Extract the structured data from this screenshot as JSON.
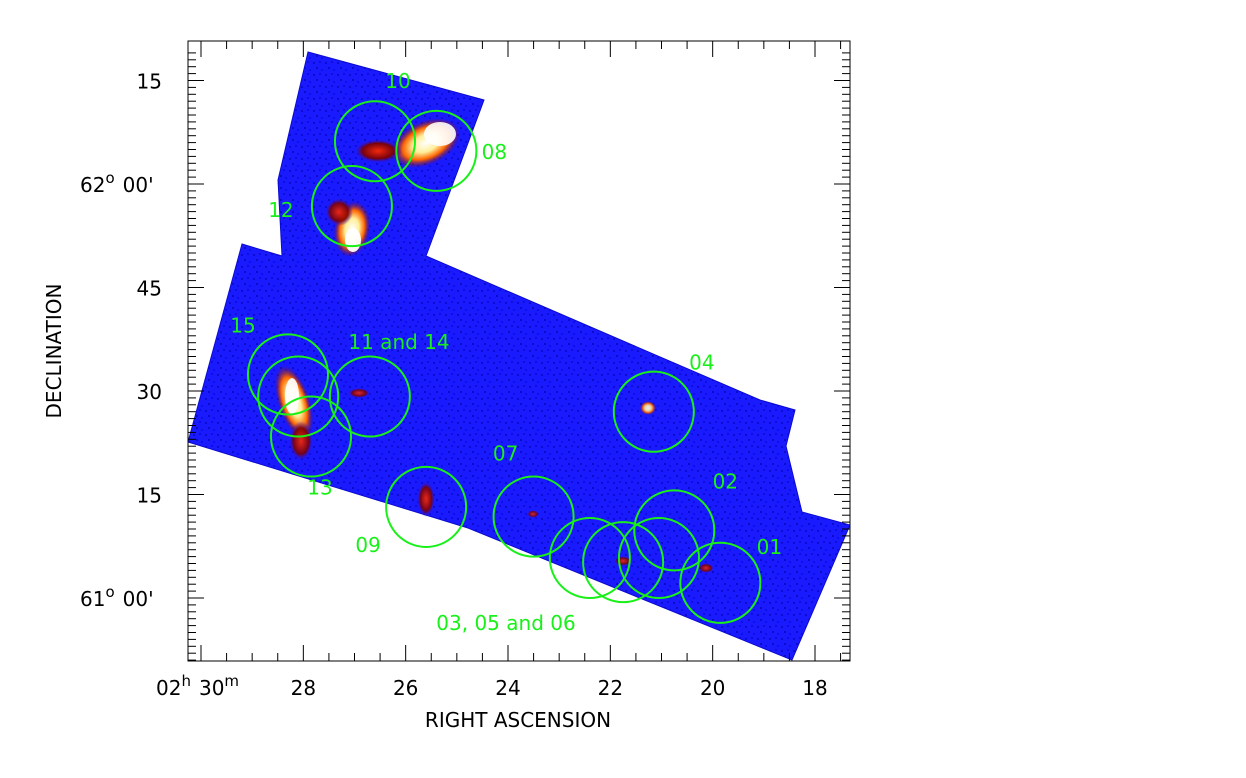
{
  "chart_data": {
    "type": "map",
    "xlabel": "RIGHT ASCENSION",
    "ylabel": "DECLINATION",
    "x_axis": {
      "unit": "minutes of right ascension",
      "ticks": [
        {
          "value": 30,
          "hour": "02",
          "minute": "30",
          "hour_unit": "h",
          "minute_unit": "m"
        },
        {
          "value": 28,
          "label": "28"
        },
        {
          "value": 26,
          "label": "26"
        },
        {
          "value": 24,
          "label": "24"
        },
        {
          "value": 22,
          "label": "22"
        },
        {
          "value": 20,
          "label": "20"
        },
        {
          "value": 18,
          "label": "18"
        }
      ],
      "range": [
        30.4,
        17.2
      ],
      "direction": "decreasing left-to-right"
    },
    "y_axis": {
      "unit": "arcminutes relative to 61°",
      "ticks": [
        {
          "value": 0,
          "deg": "61",
          "min": "00'",
          "deg_symbol": "o"
        },
        {
          "value": 15,
          "label": "15"
        },
        {
          "value": 30,
          "label": "30"
        },
        {
          "value": 45,
          "label": "45"
        },
        {
          "value": 60,
          "deg": "62",
          "min": "00'",
          "deg_symbol": "o"
        },
        {
          "value": 75,
          "label": "15"
        }
      ],
      "range": [
        -9,
        79
      ]
    },
    "map": {
      "background_color": "#1a1aff",
      "emission_colors": [
        "#8b0000",
        "#ff3300",
        "#ffaa00",
        "#ffffff"
      ]
    },
    "circle_color": "#19f019",
    "fields": [
      {
        "id": "01",
        "label": "01",
        "ra": 19.85,
        "dec": 2.2,
        "radius_arcmin": 5.8
      },
      {
        "id": "02",
        "label": "02",
        "ra": 20.75,
        "dec": 9.8,
        "radius_arcmin": 5.8
      },
      {
        "id": "03",
        "ra": 22.4,
        "dec": 5.8,
        "radius_arcmin": 5.8
      },
      {
        "id": "05",
        "ra": 21.75,
        "dec": 5.2,
        "radius_arcmin": 5.8
      },
      {
        "id": "06",
        "ra": 21.05,
        "dec": 5.8,
        "radius_arcmin": 5.8
      },
      {
        "id": "04",
        "label": "04",
        "ra": 21.15,
        "dec": 27.0,
        "radius_arcmin": 5.8
      },
      {
        "id": "07",
        "label": "07",
        "ra": 23.5,
        "dec": 11.8,
        "radius_arcmin": 5.8
      },
      {
        "id": "09",
        "label": "09",
        "ra": 25.6,
        "dec": 13.2,
        "radius_arcmin": 5.8
      },
      {
        "id": "13",
        "label": "13",
        "ra": 27.85,
        "dec": 23.4,
        "radius_arcmin": 5.8
      },
      {
        "id": "15",
        "label": "15",
        "ra": 28.3,
        "dec": 32.4,
        "radius_arcmin": 5.8
      },
      {
        "id": "11",
        "ra": 28.1,
        "dec": 29.2,
        "radius_arcmin": 5.8
      },
      {
        "id": "14",
        "ra": 26.7,
        "dec": 29.2,
        "radius_arcmin": 5.8
      },
      {
        "id": "12",
        "label": "12",
        "ra": 27.05,
        "dec": 56.8,
        "radius_arcmin": 5.8
      },
      {
        "id": "10",
        "label": "10",
        "ra": 26.6,
        "dec": 66.2,
        "radius_arcmin": 5.8
      },
      {
        "id": "08",
        "label": "08",
        "ra": 25.4,
        "dec": 64.8,
        "radius_arcmin": 5.8
      }
    ],
    "group_labels": [
      {
        "text": "11 and 14"
      },
      {
        "text": "03, 05 and 06"
      }
    ]
  }
}
